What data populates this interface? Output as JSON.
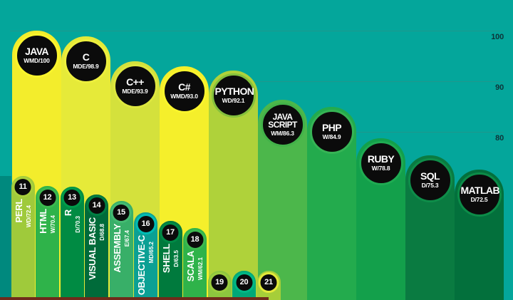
{
  "chart_data": {
    "type": "bar",
    "title": "",
    "description": "Ranking of top programming languages: back row bars ranked 1-10 with name/score badges, front row bars ranked 11-21 with numbered badges and rotated labels",
    "y_axis": {
      "side": "right",
      "ticks": [
        "100",
        "90",
        "80"
      ],
      "tick_values": [
        100,
        90,
        80
      ]
    },
    "languages": [
      {
        "rank": "1",
        "name": "JAVA",
        "score": 100,
        "label": "WMD/100",
        "row": "back",
        "bar_color": "#F3ED2C",
        "ring_color": "#F9F42C"
      },
      {
        "rank": "2",
        "name": "C",
        "score": 98.9,
        "label": "MDE/98.9",
        "row": "back",
        "bar_color": "#E6EA39",
        "ring_color": "#EDEF3D"
      },
      {
        "rank": "3",
        "name": "C++",
        "score": 93.9,
        "label": "MDE/93.9",
        "row": "back",
        "bar_color": "#D4E13C",
        "ring_color": "#DDE73F"
      },
      {
        "rank": "4",
        "name": "C#",
        "score": 93.0,
        "label": "WMD/93.0",
        "row": "back",
        "bar_color": "#F5EF2B",
        "ring_color": "#F9F42C"
      },
      {
        "rank": "5",
        "name": "PYTHON",
        "score": 92.1,
        "label": "WD/92.1",
        "row": "back",
        "bar_color": "#AFD23A",
        "ring_color": "#84C03C"
      },
      {
        "rank": "6",
        "name": "JAVA SCRIPT",
        "score": 86.3,
        "label": "WM/86.3",
        "row": "back",
        "bar_color": "#4CB74B",
        "ring_color": "#42B249"
      },
      {
        "rank": "7",
        "name": "PHP",
        "score": 84.9,
        "label": "W/84.9",
        "row": "back",
        "bar_color": "#23AB4D",
        "ring_color": "#36B455"
      },
      {
        "rank": "8",
        "name": "RUBY",
        "score": 78.8,
        "label": "W/78.8",
        "row": "back",
        "bar_color": "#13A04B",
        "ring_color": "#1FAB52"
      },
      {
        "rank": "9",
        "name": "SQL",
        "score": 75.3,
        "label": "D/75.3",
        "row": "back",
        "bar_color": "#0A7B41",
        "ring_color": "#0E8D49"
      },
      {
        "rank": "10",
        "name": "MATLAB",
        "score": 72.5,
        "label": "D/72.5",
        "row": "back",
        "bar_color": "#03703C",
        "ring_color": "#0C8C48"
      },
      {
        "rank": "11",
        "name": "PERL",
        "score": 72.4,
        "label": "WD/72.4",
        "row": "front",
        "bar_color": "#9FCA3B",
        "ring_color": "#A9CF3C"
      },
      {
        "rank": "12",
        "name": "HTML",
        "score": 70.4,
        "label": "W/70.4",
        "row": "front",
        "bar_color": "#2FB34A",
        "ring_color": "#3CB94F"
      },
      {
        "rank": "13",
        "name": "R",
        "score": 70.3,
        "label": "D/70.3",
        "row": "front",
        "bar_color": "#008B43",
        "ring_color": "#009C4B"
      },
      {
        "rank": "14",
        "name": "VISUAL BASIC",
        "score": 68.8,
        "label": "D/68.8",
        "row": "front",
        "bar_color": "#006B3A",
        "ring_color": "#007F43"
      },
      {
        "rank": "15",
        "name": "ASSEMBLY",
        "score": 67.4,
        "label": "E/67.4",
        "row": "front",
        "bar_color": "#38AF68",
        "ring_color": "#44BB72"
      },
      {
        "rank": "16",
        "name": "OBJECTIVE-C",
        "score": 65.2,
        "label": "MD/65.2",
        "row": "front",
        "bar_color": "#0BA094",
        "ring_color": "#00BCB4"
      },
      {
        "rank": "17",
        "name": "SHELL",
        "score": 63.5,
        "label": "D/63.5",
        "row": "front",
        "bar_color": "#007A3D",
        "ring_color": "#008B46"
      },
      {
        "rank": "18",
        "name": "SCALA",
        "score": 62.1,
        "label": "WM/62.1",
        "row": "front",
        "bar_color": "#2FB34A",
        "ring_color": "#3CB94F"
      },
      {
        "rank": "19",
        "name": "",
        "score": null,
        "label": "",
        "row": "front",
        "bar_color": "#8DC63F",
        "ring_color": "#9BCD3F"
      },
      {
        "rank": "20",
        "name": "",
        "score": null,
        "label": "",
        "row": "front",
        "bar_color": "#00A878",
        "ring_color": "#00B885"
      },
      {
        "rank": "21",
        "name": "",
        "score": null,
        "label": "",
        "row": "front",
        "bar_color": "#A6CE39",
        "ring_color": "#E3E93A"
      }
    ]
  },
  "colors": {
    "background": "#04A69B",
    "gridline": "#1F978C",
    "tick_label": "#0E3338",
    "circle_fill": "#0B0B0B",
    "circle_text": "#FFFFFF",
    "left_shade": "#00897E",
    "bottom_strip": "#6F2B1B"
  }
}
